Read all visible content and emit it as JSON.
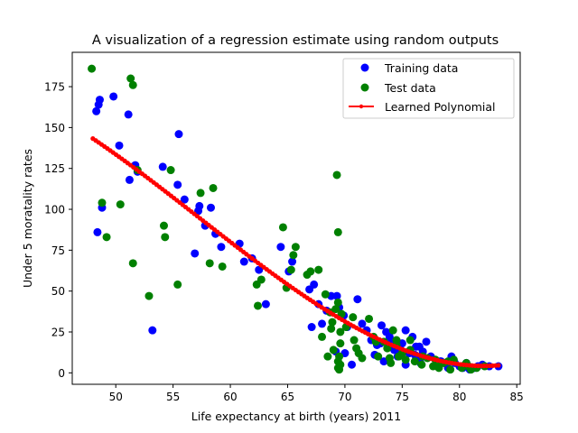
{
  "chart_data": {
    "type": "scatter",
    "title": "A visualization of a regression estimate using random outputs",
    "xlabel": "Life expectancy at birth (years) 2011",
    "ylabel": "Under 5 moratality rates",
    "xlim": [
      46.2,
      85.3
    ],
    "ylim": [
      -7,
      196
    ],
    "xticks": [
      50,
      55,
      60,
      65,
      70,
      75,
      80,
      85
    ],
    "yticks": [
      0,
      25,
      50,
      75,
      100,
      125,
      150,
      175
    ],
    "grid": false,
    "legend_position": "top-right",
    "series": [
      {
        "name": "Training data",
        "kind": "scatter",
        "color": "#0000ff",
        "points": [
          [
            48.3,
            160
          ],
          [
            48.5,
            164
          ],
          [
            48.6,
            167
          ],
          [
            49.8,
            169
          ],
          [
            48.8,
            101
          ],
          [
            48.4,
            86
          ],
          [
            50.3,
            139
          ],
          [
            51.1,
            158
          ],
          [
            51.2,
            118
          ],
          [
            51.7,
            127
          ],
          [
            54.1,
            126
          ],
          [
            55.5,
            146
          ],
          [
            55.4,
            115
          ],
          [
            56.0,
            106
          ],
          [
            56.9,
            73
          ],
          [
            57.2,
            99
          ],
          [
            57.8,
            90
          ],
          [
            58.3,
            101
          ],
          [
            58.7,
            85
          ],
          [
            59.2,
            77
          ],
          [
            60.8,
            79
          ],
          [
            61.2,
            68
          ],
          [
            61.9,
            70
          ],
          [
            62.5,
            63
          ],
          [
            63.1,
            42
          ],
          [
            64.4,
            77
          ],
          [
            65.1,
            62
          ],
          [
            65.4,
            68
          ],
          [
            66.9,
            51
          ],
          [
            67.3,
            54
          ],
          [
            67.7,
            42
          ],
          [
            67.1,
            28
          ],
          [
            68.0,
            30
          ],
          [
            68.4,
            38
          ],
          [
            68.8,
            47
          ],
          [
            69.3,
            47
          ],
          [
            69.5,
            40
          ],
          [
            69.9,
            35
          ],
          [
            70.2,
            28
          ],
          [
            70.6,
            5
          ],
          [
            71.1,
            45
          ],
          [
            71.5,
            30
          ],
          [
            71.9,
            26
          ],
          [
            72.3,
            20
          ],
          [
            72.8,
            17
          ],
          [
            73.2,
            29
          ],
          [
            73.6,
            25
          ],
          [
            73.9,
            22
          ],
          [
            74.3,
            15
          ],
          [
            74.6,
            10
          ],
          [
            75.0,
            18
          ],
          [
            75.3,
            5
          ],
          [
            75.6,
            12
          ],
          [
            75.9,
            22
          ],
          [
            76.2,
            8
          ],
          [
            76.5,
            16
          ],
          [
            76.8,
            13
          ],
          [
            77.1,
            19
          ],
          [
            77.5,
            10
          ],
          [
            77.9,
            5
          ],
          [
            78.3,
            7
          ],
          [
            78.7,
            6
          ],
          [
            79.0,
            3
          ],
          [
            79.3,
            10
          ],
          [
            79.6,
            6
          ],
          [
            80.0,
            4
          ],
          [
            80.3,
            3
          ],
          [
            80.6,
            6
          ],
          [
            80.9,
            2
          ],
          [
            81.3,
            3
          ],
          [
            81.6,
            4
          ],
          [
            82.0,
            5
          ],
          [
            82.6,
            4
          ],
          [
            83.4,
            4
          ],
          [
            75.3,
            26
          ],
          [
            74.0,
            18
          ],
          [
            72.6,
            11
          ],
          [
            76.1,
            11
          ],
          [
            69.2,
            13
          ],
          [
            70.0,
            12
          ],
          [
            73.4,
            7
          ],
          [
            76.6,
            6
          ],
          [
            74.8,
            14
          ],
          [
            78.4,
            7
          ],
          [
            73.1,
            18
          ],
          [
            74.3,
            14
          ],
          [
            76.2,
            16
          ],
          [
            51.9,
            123
          ],
          [
            53.2,
            26
          ],
          [
            57.3,
            102
          ]
        ]
      },
      {
        "name": "Test data",
        "kind": "scatter",
        "color": "#008000",
        "points": [
          [
            47.9,
            186
          ],
          [
            51.3,
            180
          ],
          [
            51.5,
            176
          ],
          [
            48.8,
            104
          ],
          [
            49.2,
            83
          ],
          [
            50.4,
            103
          ],
          [
            51.5,
            67
          ],
          [
            51.9,
            124
          ],
          [
            52.9,
            47
          ],
          [
            54.2,
            90
          ],
          [
            54.3,
            83
          ],
          [
            54.8,
            124
          ],
          [
            55.4,
            54
          ],
          [
            57.4,
            110
          ],
          [
            58.2,
            67
          ],
          [
            58.5,
            113
          ],
          [
            59.3,
            65
          ],
          [
            62.3,
            54
          ],
          [
            62.7,
            57
          ],
          [
            62.4,
            41
          ],
          [
            64.6,
            89
          ],
          [
            64.9,
            52
          ],
          [
            65.3,
            63
          ],
          [
            65.5,
            72
          ],
          [
            65.7,
            77
          ],
          [
            66.7,
            60
          ],
          [
            67.0,
            62
          ],
          [
            67.7,
            63
          ],
          [
            68.0,
            22
          ],
          [
            68.3,
            48
          ],
          [
            68.7,
            37
          ],
          [
            68.9,
            31
          ],
          [
            69.2,
            39
          ],
          [
            69.4,
            43
          ],
          [
            69.7,
            36
          ],
          [
            69.3,
            121
          ],
          [
            69.4,
            86
          ],
          [
            69.6,
            18
          ],
          [
            69.5,
            10
          ],
          [
            69.4,
            3
          ],
          [
            69.6,
            25
          ],
          [
            70.1,
            28
          ],
          [
            70.7,
            34
          ],
          [
            71.0,
            15
          ],
          [
            71.2,
            12
          ],
          [
            72.1,
            33
          ],
          [
            72.5,
            22
          ],
          [
            72.9,
            10
          ],
          [
            73.4,
            19
          ],
          [
            73.7,
            15
          ],
          [
            74.2,
            26
          ],
          [
            74.5,
            20
          ],
          [
            74.7,
            10
          ],
          [
            75.3,
            8
          ],
          [
            75.7,
            14
          ],
          [
            76.1,
            7
          ],
          [
            76.7,
            5
          ],
          [
            77.2,
            9
          ],
          [
            77.7,
            4
          ],
          [
            78.2,
            3
          ],
          [
            78.6,
            6
          ],
          [
            79.2,
            2
          ],
          [
            79.5,
            8
          ],
          [
            80.2,
            3
          ],
          [
            80.5,
            5
          ],
          [
            81.0,
            2
          ],
          [
            81.5,
            3
          ],
          [
            68.5,
            10
          ],
          [
            69.6,
            5
          ],
          [
            71.5,
            9
          ],
          [
            72.7,
            19
          ],
          [
            73.9,
            9
          ],
          [
            75.0,
            12
          ],
          [
            76.8,
            10
          ],
          [
            77.9,
            8
          ],
          [
            79.0,
            7
          ],
          [
            80.6,
            6
          ],
          [
            82.2,
            4
          ],
          [
            69.5,
            2
          ],
          [
            69.4,
            7
          ],
          [
            69.0,
            14
          ],
          [
            68.8,
            27
          ],
          [
            70.8,
            20
          ],
          [
            74.5,
            17
          ],
          [
            75.7,
            20
          ],
          [
            78.0,
            5
          ],
          [
            80.8,
            4
          ],
          [
            74.0,
            6
          ]
        ]
      },
      {
        "name": "Learned Polynomial",
        "kind": "line",
        "color": "#ff0000",
        "x_range": [
          48.0,
          83.4
        ]
      }
    ]
  }
}
